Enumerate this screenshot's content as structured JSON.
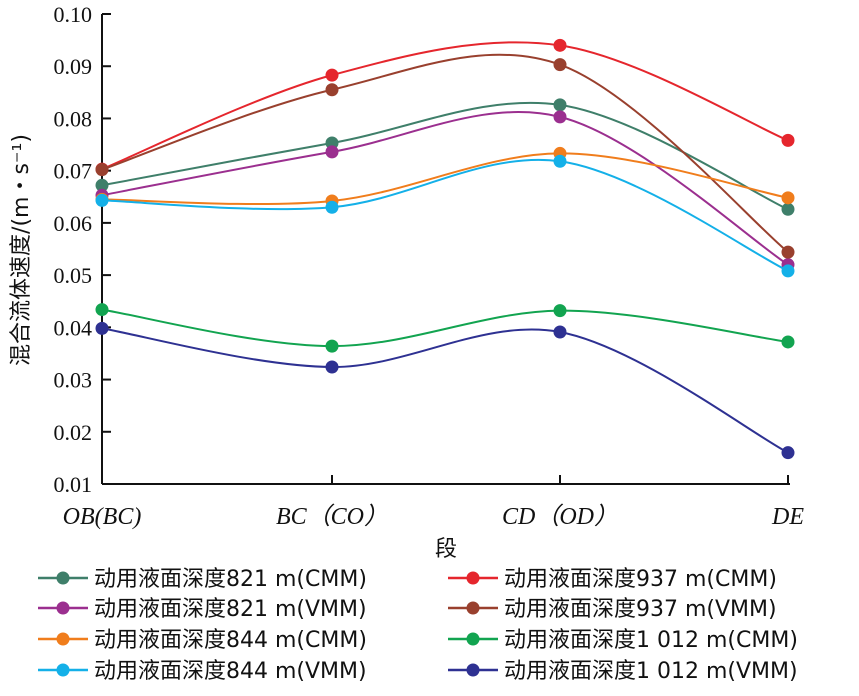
{
  "chart_data": {
    "type": "line",
    "categories": [
      "OB(BC)",
      "BC（CO）",
      "CD（OD）",
      "DE"
    ],
    "xlabel": "段",
    "ylabel": "混合流体速度/(m・s⁻¹)",
    "ylim": [
      0.01,
      0.1
    ],
    "yticks": [
      "0.01",
      "0.02",
      "0.03",
      "0.04",
      "0.05",
      "0.06",
      "0.07",
      "0.08",
      "0.09",
      "0.10"
    ],
    "grid": false,
    "legend_position": "bottom",
    "series": [
      {
        "name": "动用液面深度821 m(CMM)",
        "color": "#3f7f6a",
        "values": [
          0.0672,
          0.0753,
          0.0826,
          0.0626
        ]
      },
      {
        "name": "动用液面深度937 m(CMM)",
        "color": "#e5262d",
        "values": [
          0.0703,
          0.0883,
          0.094,
          0.0758
        ]
      },
      {
        "name": "动用液面深度821 m(VMM)",
        "color": "#9b2f8f",
        "values": [
          0.0653,
          0.0736,
          0.0803,
          0.052
        ]
      },
      {
        "name": "动用液面深度937 m(VMM)",
        "color": "#99402e",
        "values": [
          0.0702,
          0.0855,
          0.0903,
          0.0544
        ]
      },
      {
        "name": "动用液面深度844 m(CMM)",
        "color": "#f07d1c",
        "values": [
          0.0645,
          0.0642,
          0.0733,
          0.0648
        ]
      },
      {
        "name": "动用液面深度1 012 m(CMM)",
        "color": "#12a450",
        "values": [
          0.0434,
          0.0364,
          0.0432,
          0.0372
        ]
      },
      {
        "name": "动用液面深度844 m(VMM)",
        "color": "#14b0e8",
        "values": [
          0.0643,
          0.063,
          0.0718,
          0.0508
        ]
      },
      {
        "name": "动用液面深度1 012 m(VMM)",
        "color": "#2e3192",
        "values": [
          0.0398,
          0.0324,
          0.0391,
          0.016
        ]
      }
    ]
  }
}
